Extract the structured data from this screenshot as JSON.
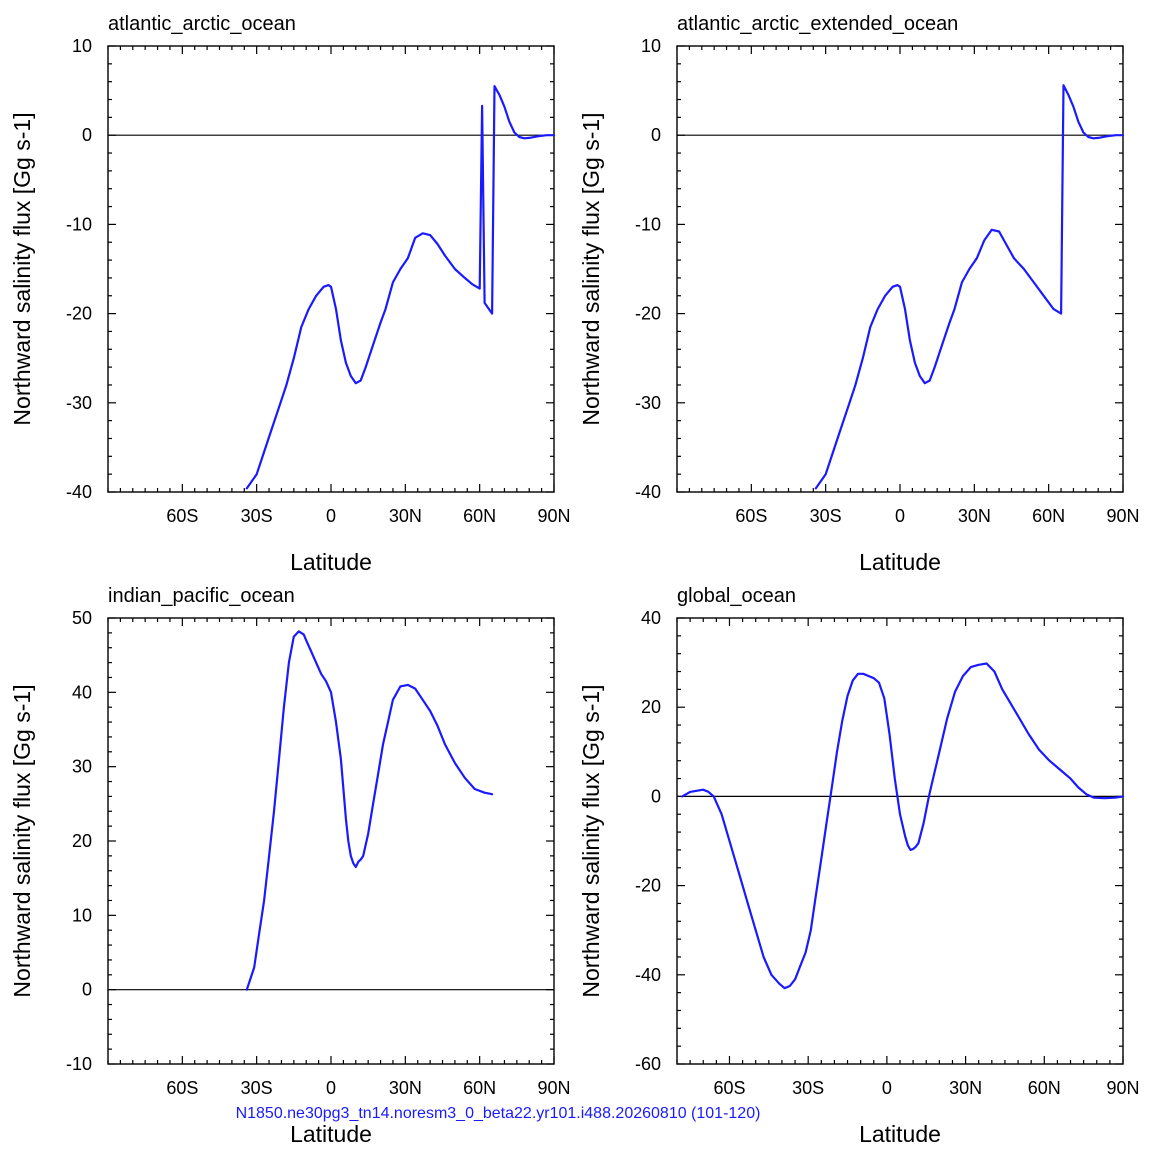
{
  "footer": "N1850.ne30pg3_tn14.noresm3_0_beta22.yr101.i488.20260810 (101-120)",
  "colors": {
    "series": "#1a1aff",
    "footer": "#1a1aff",
    "axis": "#000000"
  },
  "chart_data": [
    {
      "type": "line",
      "title": "atlantic_arctic_ocean",
      "xlabel": "Latitude",
      "ylabel": "Northward salinity flux [Gg s-1]",
      "xlim": [
        -90,
        90
      ],
      "ylim": [
        -40,
        10
      ],
      "x_ticks": [
        -60,
        -30,
        0,
        30,
        60,
        90
      ],
      "x_tick_labels": [
        "60S",
        "30S",
        "0",
        "30N",
        "60N",
        "90N"
      ],
      "y_ticks": [
        -40,
        -30,
        -20,
        -10,
        0,
        10
      ],
      "y_tick_labels": [
        "-40",
        "-30",
        "-20",
        "-10",
        "0",
        "10"
      ],
      "zero_line": true,
      "x": [
        -34,
        -30,
        -27,
        -24,
        -21,
        -18,
        -15,
        -12,
        -9,
        -6,
        -3,
        -1,
        0,
        2,
        4,
        6,
        8,
        10,
        12,
        14,
        17,
        20,
        22,
        25,
        28,
        31,
        34,
        37,
        40,
        43,
        46,
        50,
        54,
        57,
        60,
        61,
        62,
        64,
        65,
        66,
        68,
        70,
        72,
        74,
        76,
        78,
        80,
        84,
        87,
        90
      ],
      "y": [
        -39.6,
        -38.0,
        -35.5,
        -33.0,
        -30.5,
        -28.0,
        -25.0,
        -21.5,
        -19.5,
        -18.0,
        -17.0,
        -16.8,
        -17.0,
        -19.5,
        -23.0,
        -25.5,
        -27.0,
        -27.8,
        -27.5,
        -26.0,
        -23.5,
        -21.0,
        -19.5,
        -16.5,
        -15.0,
        -13.8,
        -11.5,
        -11.0,
        -11.2,
        -12.2,
        -13.5,
        -15.0,
        -16.0,
        -16.7,
        -17.2,
        3.3,
        -18.8,
        -19.6,
        -20.0,
        5.5,
        4.5,
        3.2,
        1.5,
        0.3,
        -0.2,
        -0.35,
        -0.3,
        -0.1,
        0.0,
        0.0
      ]
    },
    {
      "type": "line",
      "title": "atlantic_arctic_extended_ocean",
      "xlabel": "Latitude",
      "ylabel": "Northward salinity flux [Gg s-1]",
      "xlim": [
        -90,
        90
      ],
      "ylim": [
        -40,
        10
      ],
      "x_ticks": [
        -60,
        -30,
        0,
        30,
        60,
        90
      ],
      "x_tick_labels": [
        "60S",
        "30S",
        "0",
        "30N",
        "60N",
        "90N"
      ],
      "y_ticks": [
        -40,
        -30,
        -20,
        -10,
        0,
        10
      ],
      "y_tick_labels": [
        "-40",
        "-30",
        "-20",
        "-10",
        "0",
        "10"
      ],
      "zero_line": true,
      "x": [
        -34,
        -30,
        -27,
        -24,
        -21,
        -18,
        -15,
        -12,
        -9,
        -6,
        -3,
        -1,
        0,
        2,
        4,
        6,
        8,
        10,
        12,
        14,
        17,
        20,
        22,
        25,
        28,
        31,
        34,
        37,
        40,
        43,
        46,
        50,
        54,
        58,
        62,
        65,
        66,
        68,
        70,
        72,
        74,
        76,
        78,
        80,
        84,
        87,
        90
      ],
      "y": [
        -39.6,
        -38.0,
        -35.5,
        -33.0,
        -30.5,
        -28.0,
        -25.0,
        -21.5,
        -19.5,
        -18.0,
        -17.0,
        -16.8,
        -17.0,
        -19.5,
        -23.0,
        -25.5,
        -27.0,
        -27.8,
        -27.5,
        -26.0,
        -23.5,
        -21.0,
        -19.5,
        -16.5,
        -15.0,
        -13.8,
        -11.8,
        -10.6,
        -10.8,
        -12.3,
        -13.8,
        -15.0,
        -16.5,
        -18.0,
        -19.5,
        -20.0,
        5.6,
        4.5,
        3.2,
        1.5,
        0.3,
        -0.2,
        -0.35,
        -0.3,
        -0.1,
        0.0,
        0.0
      ]
    },
    {
      "type": "line",
      "title": "indian_pacific_ocean",
      "xlabel": "Latitude",
      "ylabel": "Northward salinity flux [Gg s-1]",
      "xlim": [
        -90,
        90
      ],
      "ylim": [
        -10,
        50
      ],
      "x_ticks": [
        -60,
        -30,
        0,
        30,
        60,
        90
      ],
      "x_tick_labels": [
        "60S",
        "30S",
        "0",
        "30N",
        "60N",
        "90N"
      ],
      "y_ticks": [
        -10,
        0,
        10,
        20,
        30,
        40,
        50
      ],
      "y_tick_labels": [
        "-10",
        "0",
        "10",
        "20",
        "30",
        "40",
        "50"
      ],
      "zero_line": true,
      "x": [
        -34,
        -31,
        -29,
        -27,
        -25,
        -23,
        -21,
        -19,
        -17,
        -15,
        -13,
        -11,
        -10,
        -8,
        -6,
        -4,
        -2,
        0,
        2,
        4,
        5,
        6,
        7,
        8,
        9,
        10,
        11,
        12,
        13,
        15,
        17,
        19,
        21,
        23,
        25,
        28,
        31,
        34,
        37,
        40,
        43,
        46,
        50,
        54,
        58,
        62,
        65
      ],
      "y": [
        0,
        3,
        7.5,
        12,
        18,
        24,
        31,
        38,
        44,
        47.5,
        48.2,
        47.8,
        47,
        45.5,
        44,
        42.5,
        41.5,
        40,
        36,
        31,
        27,
        23,
        20,
        18,
        17,
        16.5,
        17.2,
        17.5,
        18,
        21,
        25,
        29,
        33,
        36,
        39,
        40.8,
        41,
        40.5,
        39,
        37.5,
        35.5,
        33,
        30.5,
        28.5,
        27,
        26.5,
        26.3
      ]
    },
    {
      "type": "line",
      "title": "global_ocean",
      "xlabel": "Latitude",
      "ylabel": "Northward salinity flux [Gg s-1]",
      "xlim": [
        -80,
        90
      ],
      "ylim": [
        -60,
        40
      ],
      "x_ticks": [
        -60,
        -30,
        0,
        30,
        60,
        90
      ],
      "x_tick_labels": [
        "60S",
        "30S",
        "0",
        "30N",
        "60N",
        "90N"
      ],
      "y_ticks": [
        -60,
        -40,
        -20,
        0,
        20,
        40
      ],
      "y_tick_labels": [
        "-60",
        "-40",
        "-20",
        "0",
        "20",
        "40"
      ],
      "zero_line": true,
      "x": [
        -78,
        -75,
        -72,
        -70,
        -68,
        -66,
        -63,
        -60,
        -56,
        -53,
        -50,
        -47,
        -44,
        -41,
        -39,
        -37,
        -35,
        -33,
        -31,
        -29,
        -27,
        -25,
        -23,
        -21,
        -19,
        -17,
        -15,
        -13,
        -11,
        -9,
        -7,
        -5,
        -3,
        -1,
        1,
        3,
        5,
        7,
        8,
        9,
        10,
        11,
        12,
        14,
        16,
        18,
        20,
        23,
        26,
        29,
        32,
        35,
        38,
        41,
        44,
        47,
        50,
        54,
        58,
        62,
        66,
        70,
        73,
        76,
        79,
        83,
        87,
        90
      ],
      "y": [
        0,
        1,
        1.3,
        1.5,
        1,
        0,
        -4,
        -10,
        -18,
        -24,
        -30,
        -36,
        -40,
        -42,
        -43,
        -42.5,
        -41,
        -38,
        -35,
        -30,
        -22,
        -14,
        -6,
        2,
        10,
        17,
        22.5,
        26,
        27.5,
        27.5,
        27,
        26.5,
        25.5,
        22,
        14,
        4,
        -4,
        -9,
        -11,
        -12,
        -11.8,
        -11.3,
        -10.5,
        -6,
        0,
        5,
        10,
        17.5,
        23.5,
        27,
        29,
        29.5,
        29.8,
        28,
        24,
        21,
        18,
        14,
        10.5,
        8,
        6,
        4,
        2,
        0.5,
        -0.3,
        -0.4,
        -0.3,
        0.0
      ]
    }
  ]
}
